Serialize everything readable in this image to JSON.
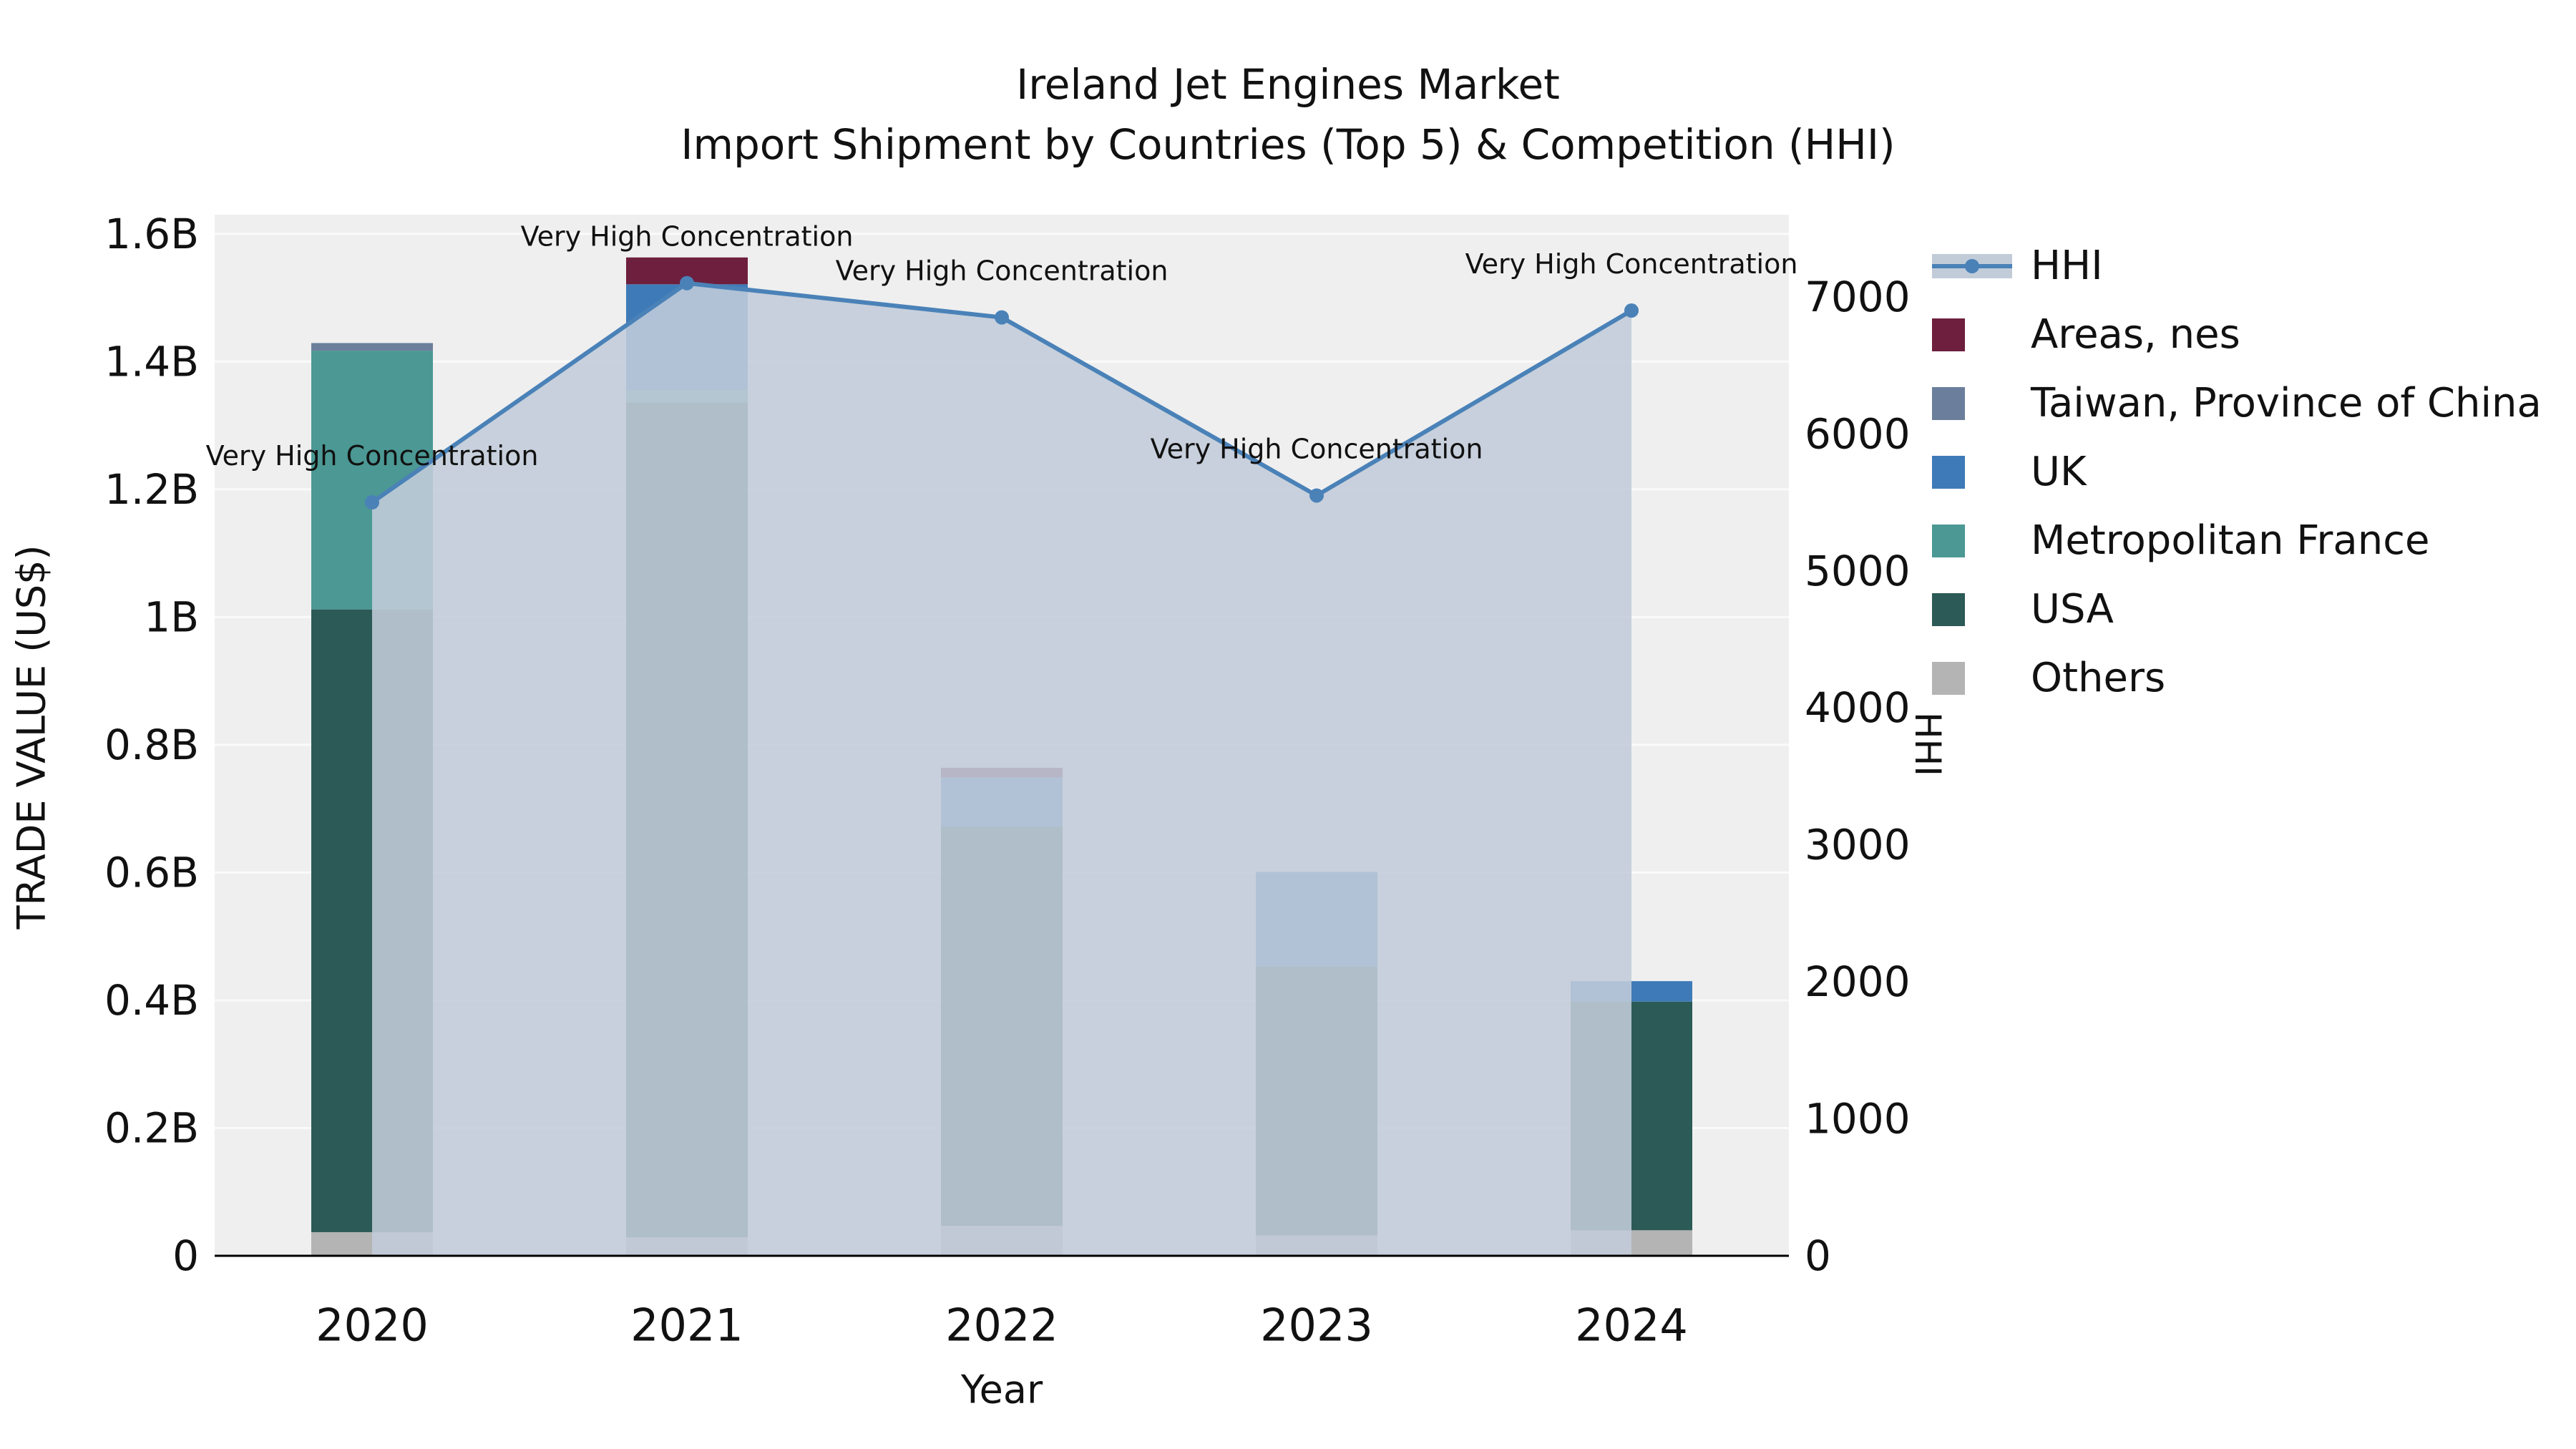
{
  "chart_data": {
    "type": "bar",
    "subtype": "stacked-bars-with-line-area-overlay",
    "title": "Ireland Jet Engines Market",
    "subtitle": "Import Shipment by Countries (Top 5) & Competition (HHI)",
    "xlabel": "Year",
    "ylabel_left": "TRADE VALUE (US$)",
    "ylabel_right": "HHI",
    "categories": [
      "2020",
      "2021",
      "2022",
      "2023",
      "2024"
    ],
    "value_unit": "USD billions",
    "bar_series": [
      {
        "name": "Others",
        "color": "#b4b4b4",
        "values": [
          0.037,
          0.029,
          0.047,
          0.032,
          0.04
        ]
      },
      {
        "name": "USA",
        "color": "#2c5a56",
        "values": [
          0.975,
          1.307,
          0.625,
          0.421,
          0.358
        ]
      },
      {
        "name": "Metropolitan France",
        "color": "#4b9894",
        "values": [
          0.405,
          0.019,
          0.0,
          0.0,
          0.0
        ]
      },
      {
        "name": "UK",
        "color": "#3e7ab8",
        "values": [
          0.0,
          0.166,
          0.077,
          0.148,
          0.032
        ]
      },
      {
        "name": "Taiwan, Province of China",
        "color": "#6b7f9c",
        "values": [
          0.012,
          0.0,
          0.0,
          0.0,
          0.0
        ]
      },
      {
        "name": "Areas, nes",
        "color": "#6d1f3d",
        "values": [
          0.0,
          0.042,
          0.015,
          0.0,
          0.0
        ]
      }
    ],
    "line_series": {
      "name": "HHI",
      "color": "#4a82b8",
      "area_fill": "#c2ccd9",
      "area_opacity": 0.88,
      "values": [
        5500,
        7100,
        6850,
        5550,
        6900
      ]
    },
    "point_annotations": [
      "Very High Concentration",
      "Very High Concentration",
      "Very High Concentration",
      "Very High Concentration",
      "Very High Concentration"
    ],
    "left_axis": {
      "ticks": [
        0,
        0.2,
        0.4,
        0.6,
        0.8,
        1.0,
        1.2,
        1.4,
        1.6
      ],
      "tick_labels": [
        "0",
        "0.2B",
        "0.4B",
        "0.6B",
        "0.8B",
        "1B",
        "1.2B",
        "1.4B",
        "1.6B"
      ],
      "range": [
        0,
        1.63
      ]
    },
    "right_axis": {
      "ticks": [
        0,
        1000,
        2000,
        3000,
        4000,
        5000,
        6000,
        7000
      ],
      "tick_labels": [
        "0",
        "1000",
        "2000",
        "3000",
        "4000",
        "5000",
        "6000",
        "7000"
      ],
      "range": [
        0,
        7600
      ]
    },
    "legend": {
      "position": "right",
      "order": [
        "HHI",
        "Areas, nes",
        "Taiwan, Province of China",
        "UK",
        "Metropolitan France",
        "USA",
        "Others"
      ]
    },
    "grid": true,
    "plot_bg": "#efefef",
    "grid_color": "#fafafa",
    "spine_color": "#000000",
    "text_color": "#111111"
  }
}
